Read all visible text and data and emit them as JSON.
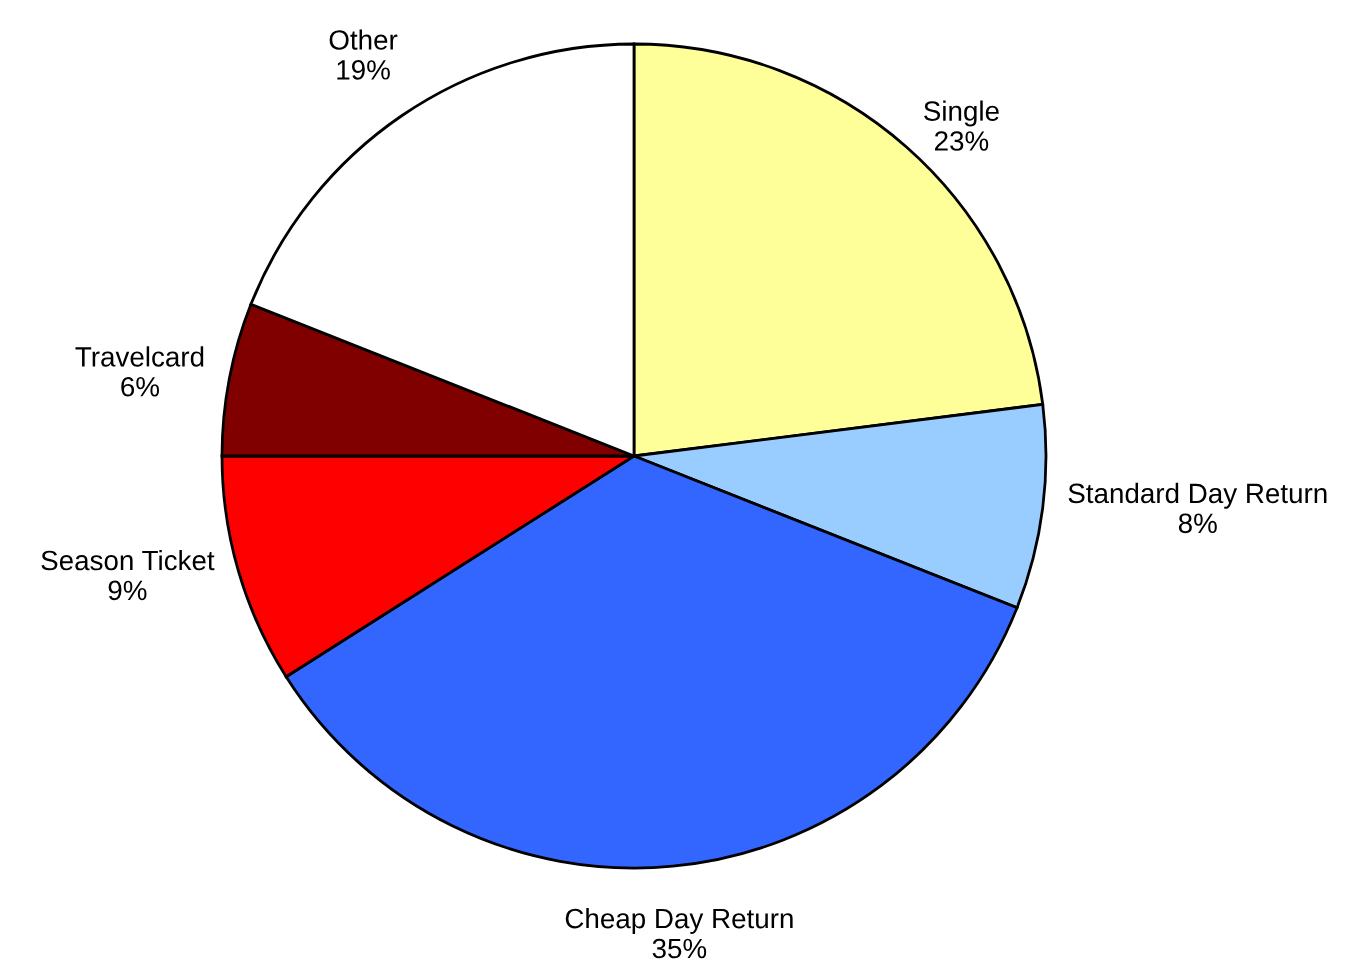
{
  "chart_data": {
    "type": "pie",
    "categories": [
      "Single",
      "Standard Day Return",
      "Cheap Day Return",
      "Season Ticket",
      "Travelcard",
      "Other"
    ],
    "values": [
      23,
      8,
      35,
      9,
      6,
      19
    ],
    "value_labels": [
      "23%",
      "8%",
      "35%",
      "9%",
      "6%",
      "19%"
    ],
    "colors": [
      "#ffff99",
      "#99ccff",
      "#3366ff",
      "#ff0000",
      "#800000",
      "#ffffff"
    ],
    "legend": false
  }
}
